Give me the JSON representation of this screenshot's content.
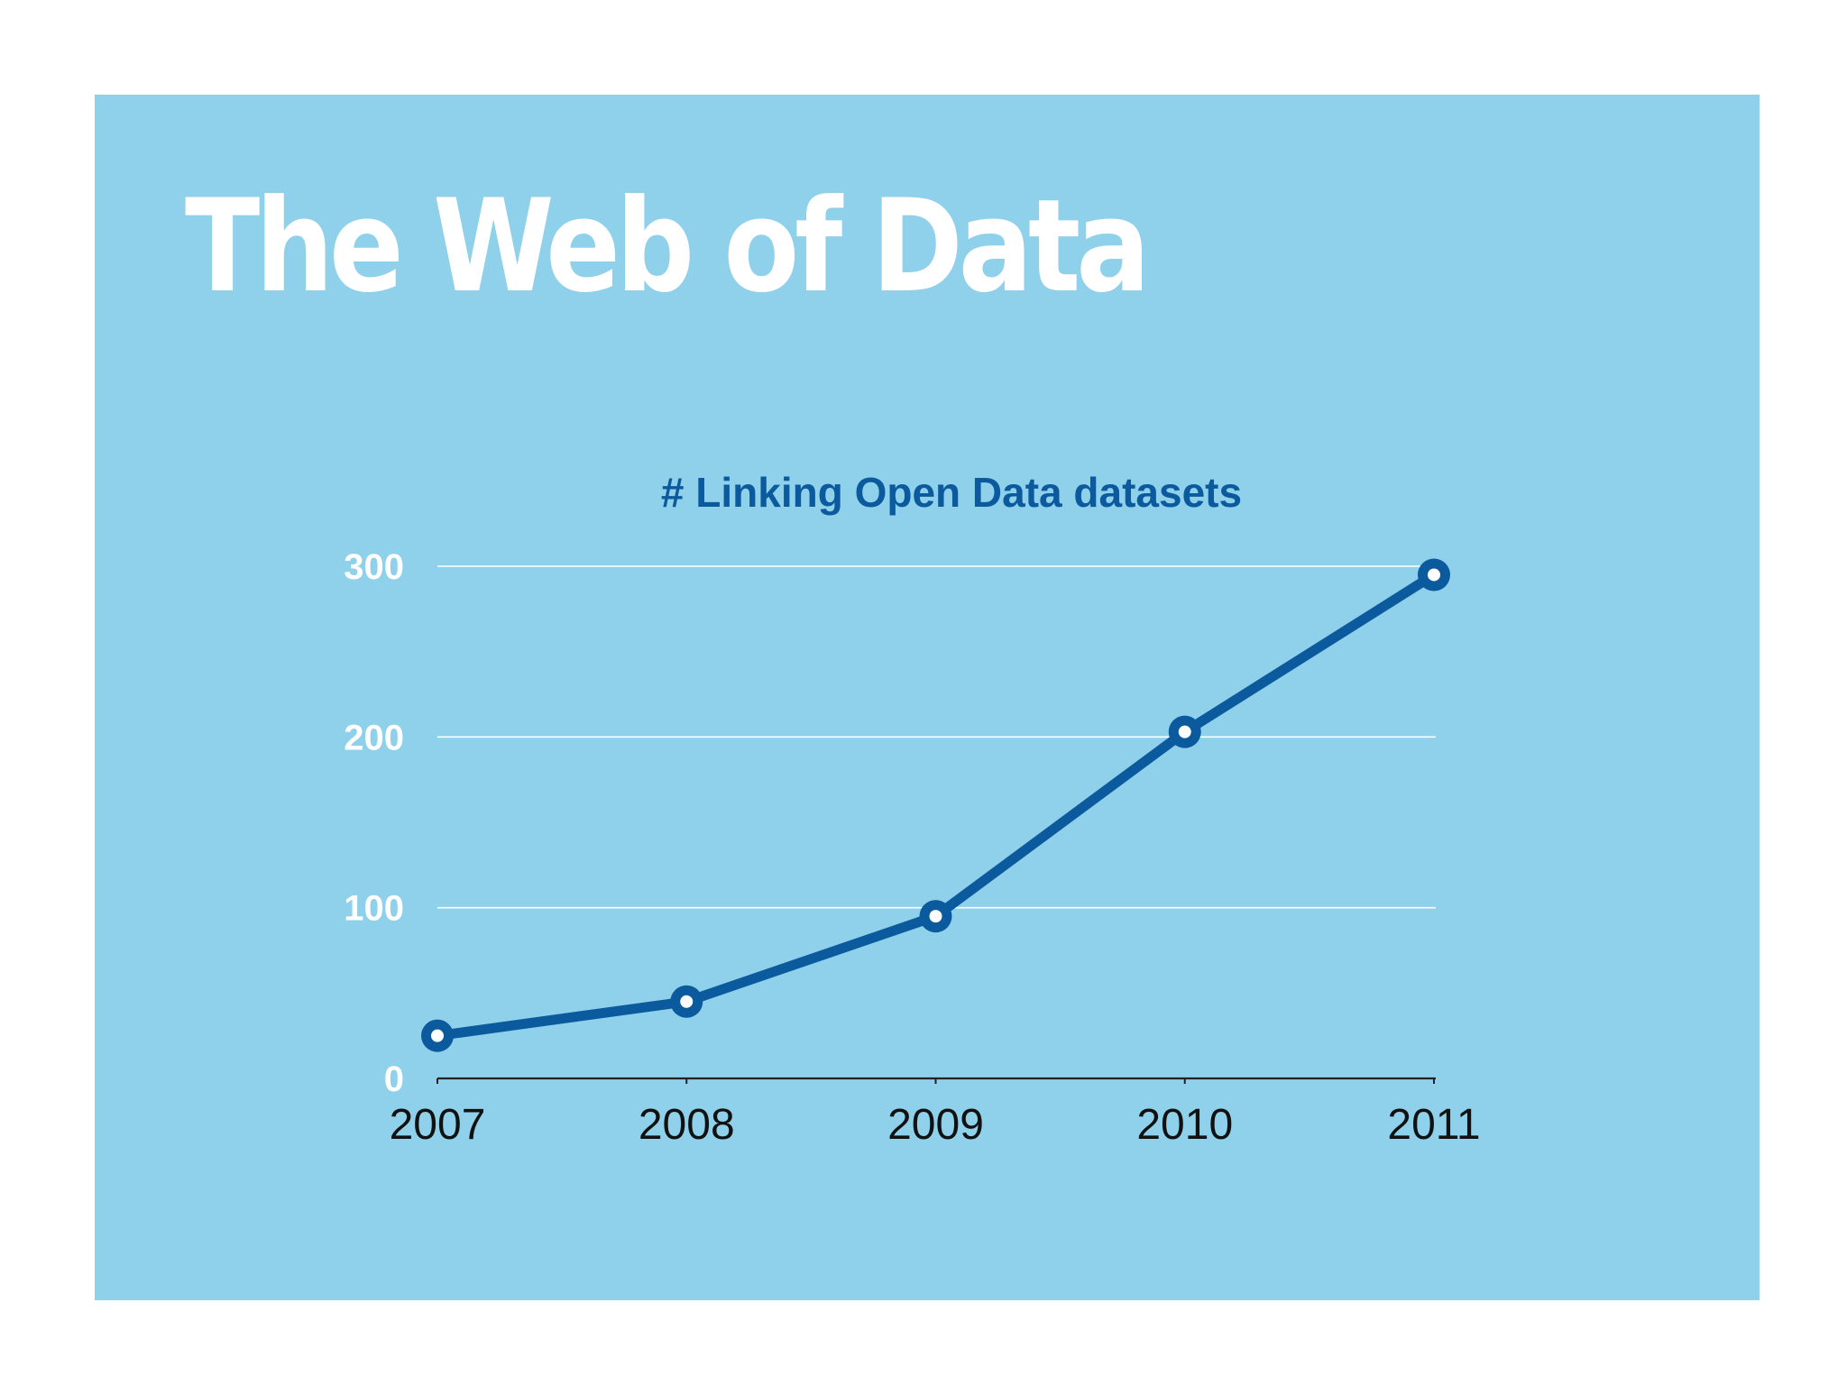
{
  "slide": {
    "title": "The Web of Data"
  },
  "colors": {
    "background": "#8fd0ea",
    "title": "#ffffff",
    "line": "#0b5a9e",
    "chart_title": "#0b5a9e",
    "grid": "#ffffff",
    "y_tick_labels": "#ffffff",
    "x_tick_labels": "#111111",
    "axis": "#222222"
  },
  "chart_data": {
    "type": "line",
    "title": "# Linking Open Data datasets",
    "xlabel": "",
    "ylabel": "",
    "categories": [
      "2007",
      "2008",
      "2009",
      "2010",
      "2011"
    ],
    "series": [
      {
        "values": [
          25,
          45,
          95,
          203,
          295
        ]
      }
    ],
    "ylim": [
      0,
      300
    ],
    "y_ticks": [
      "0",
      "100",
      "200",
      "300"
    ],
    "grid": true,
    "legend": "none"
  }
}
